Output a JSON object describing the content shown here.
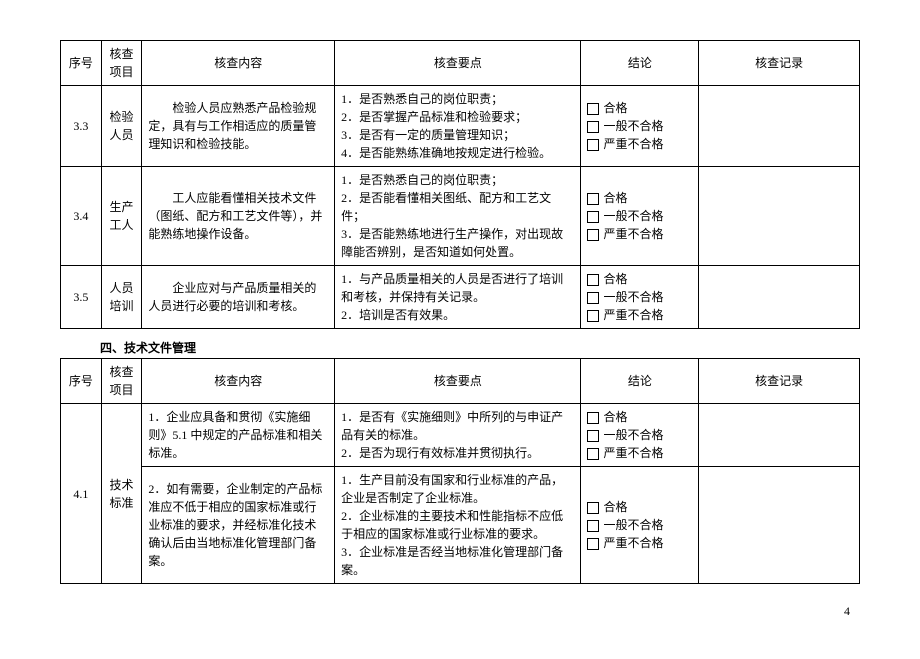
{
  "headers": {
    "index": "序号",
    "item": "核查项目",
    "content": "核查内容",
    "points": "核查要点",
    "conclusion": "结论",
    "record": "核查记录"
  },
  "conclusion_options": [
    "合格",
    "一般不合格",
    "严重不合格"
  ],
  "table1_rows": [
    {
      "index": "3.3",
      "item": "检验人员",
      "content": "　　检验人员应熟悉产品检验规定，具有与工作相适应的质量管理知识和检验技能。",
      "points": [
        "1．是否熟悉自己的岗位职责；",
        "2．是否掌握产品标准和检验要求；",
        "3．是否有一定的质量管理知识；",
        "4．是否能熟练准确地按规定进行检验。"
      ]
    },
    {
      "index": "3.4",
      "item": "生产工人",
      "content": "　　工人应能看懂相关技术文件（图纸、配方和工艺文件等），并能熟练地操作设备。",
      "points": [
        "1．是否熟悉自己的岗位职责；",
        "2．是否能看懂相关图纸、配方和工艺文件；",
        "3．是否能熟练地进行生产操作，对出现故障能否辨别，是否知道如何处置。"
      ]
    },
    {
      "index": "3.5",
      "item": "人员培训",
      "content": "　　企业应对与产品质量相关的人员进行必要的培训和考核。",
      "points": [
        "1．与产品质量相关的人员是否进行了培训和考核，并保持有关记录。",
        "2．培训是否有效果。"
      ]
    }
  ],
  "section2_title": "四、技术文件管理",
  "table2_rows": [
    {
      "index": "4.1",
      "item": "技术标准",
      "subrows": [
        {
          "content": "1．企业应具备和贯彻《实施细则》5.1 中规定的产品标准和相关标准。",
          "points": [
            "1．是否有《实施细则》中所列的与申证产品有关的标准。",
            "2．是否为现行有效标准并贯彻执行。"
          ]
        },
        {
          "content": "2．如有需要，企业制定的产品标准应不低于相应的国家标准或行业标准的要求，并经标准化技术确认后由当地标准化管理部门备案。",
          "points": [
            "1．生产目前没有国家和行业标准的产品，企业是否制定了企业标准。",
            "2．企业标准的主要技术和性能指标不应低于相应的国家标准或行业标准的要求。",
            "3．企业标准是否经当地标准化管理部门备案。"
          ]
        }
      ]
    }
  ],
  "page_number": "4"
}
